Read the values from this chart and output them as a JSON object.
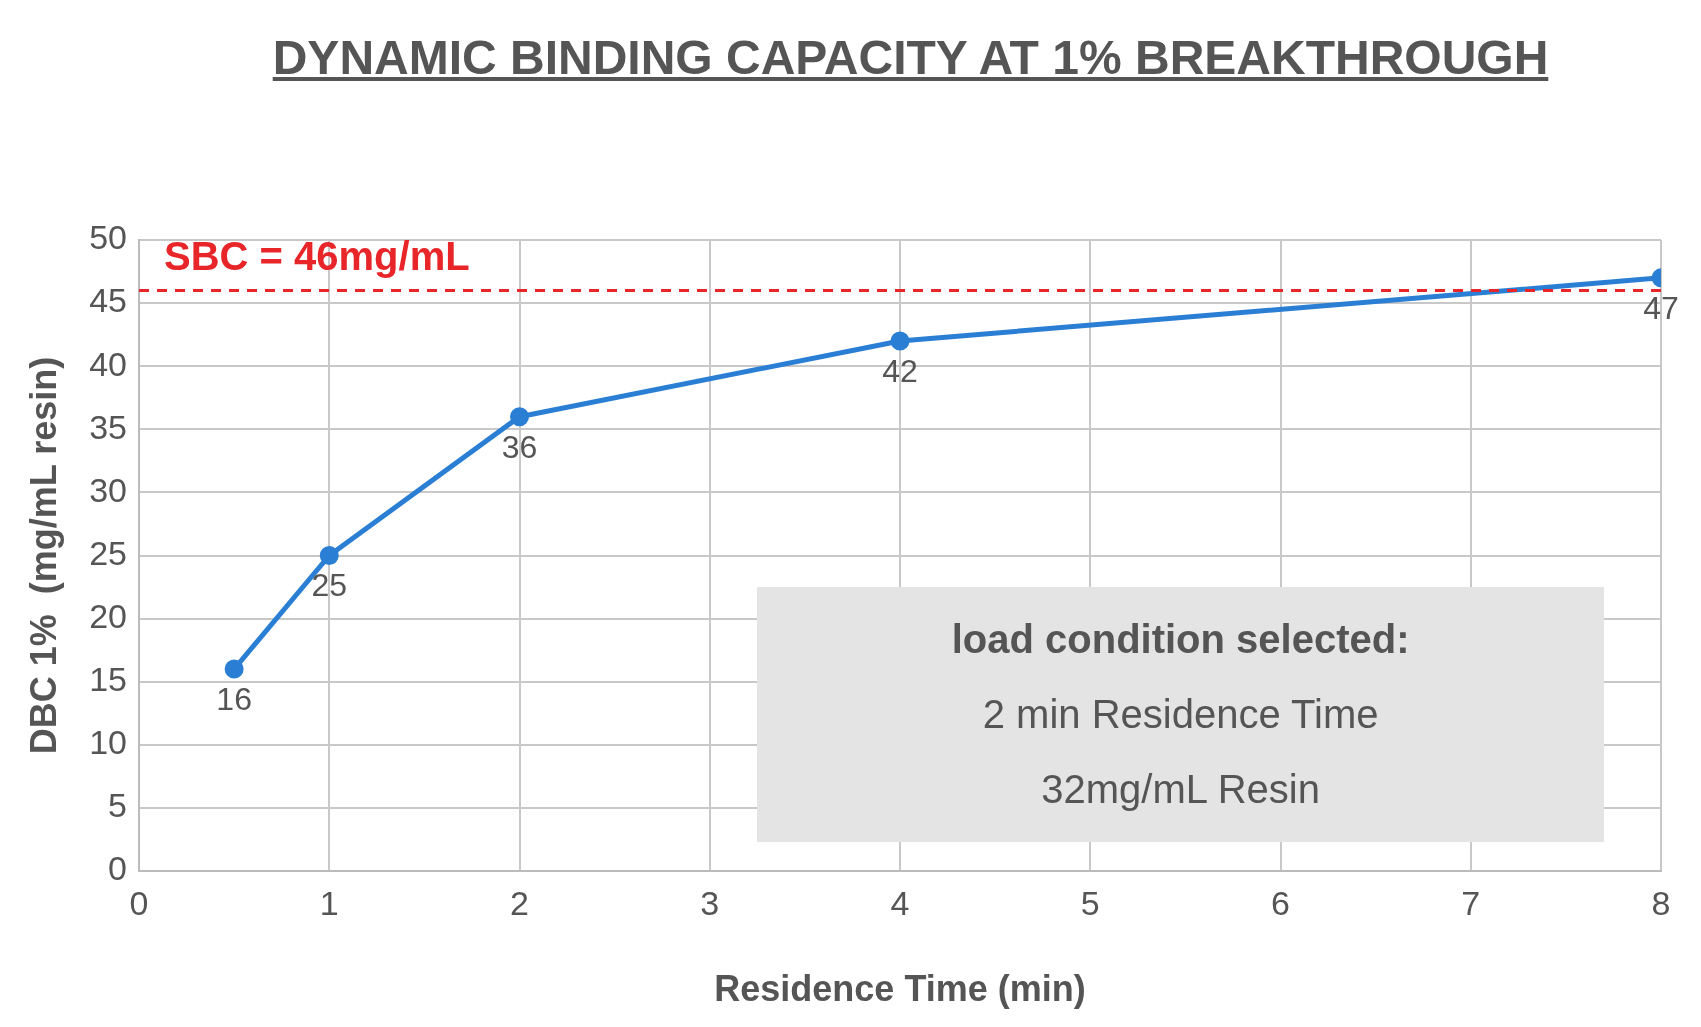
{
  "chart_data": {
    "type": "line",
    "title": "DYNAMIC BINDING CAPACITY AT 1% BREAKTHROUGH",
    "xlabel": "Residence Time (min)",
    "ylabel": "DBC 1%  (mg/mL resin)",
    "x": [
      0.5,
      1,
      2,
      4,
      8
    ],
    "series": [
      {
        "color": "#2a7fd4",
        "values": [
          16,
          25,
          36,
          42,
          47
        ]
      }
    ],
    "xlim": [
      0,
      8
    ],
    "xticks": [
      0,
      1,
      2,
      3,
      4,
      5,
      6,
      7,
      8
    ],
    "ylim": [
      0,
      50
    ],
    "yticks": [
      0,
      5,
      10,
      15,
      20,
      25,
      30,
      35,
      40,
      45,
      50
    ],
    "grid": true,
    "legend": false,
    "marker": "circle",
    "line_style": "solid",
    "data_labels": true,
    "ref_lines": [
      {
        "axis": "y",
        "value": 46,
        "label": "SBC = 46mg/mL",
        "color": "#e8262a",
        "line_style": "dashed"
      }
    ],
    "annotations": [
      "load condition selected:",
      "2 min Residence Time",
      "32mg/mL Resin"
    ]
  }
}
